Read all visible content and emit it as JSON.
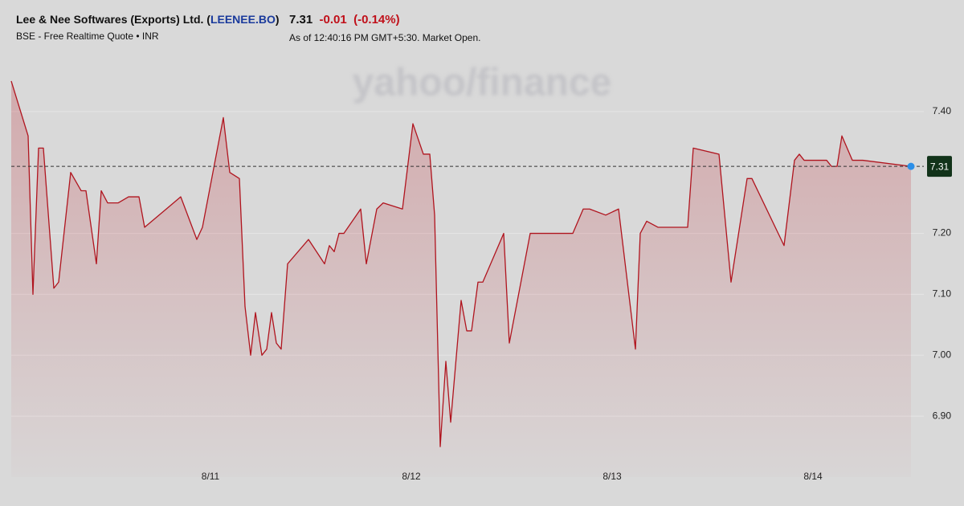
{
  "header": {
    "title": "Lee & Nee Softwares (Exports) Ltd. (",
    "symbol": "LEENEE.BO",
    "title_end": ")",
    "subtitle": "BSE - Free Realtime Quote • INR",
    "price": "7.31",
    "change": "-0.01",
    "change_percent": "(-0.14%)",
    "as_of": "As of 12:40:16 PM GMT+5:30. Market Open.",
    "watermark": "yahoo/finance"
  },
  "chart_data": {
    "type": "line",
    "x": [
      10.008,
      10.092,
      10.116,
      10.144,
      10.168,
      10.22,
      10.244,
      10.304,
      10.356,
      10.38,
      10.432,
      10.456,
      10.488,
      10.54,
      10.592,
      10.644,
      10.672,
      10.852,
      10.932,
      10.96,
      11.064,
      11.096,
      11.144,
      11.172,
      11.2,
      11.224,
      11.256,
      11.28,
      11.304,
      11.328,
      11.352,
      11.384,
      11.488,
      11.568,
      11.592,
      11.616,
      11.64,
      11.664,
      11.748,
      11.776,
      11.828,
      11.86,
      11.956,
      12.008,
      12.06,
      12.092,
      12.116,
      12.144,
      12.172,
      12.196,
      12.248,
      12.276,
      12.3,
      12.332,
      12.356,
      12.46,
      12.488,
      12.592,
      12.804,
      12.856,
      12.888,
      12.968,
      13.032,
      13.116,
      13.14,
      13.172,
      13.228,
      13.376,
      13.404,
      13.532,
      13.592,
      13.672,
      13.696,
      13.856,
      13.908,
      13.932,
      13.956,
      14.068,
      14.092,
      14.12,
      14.144,
      14.196,
      14.248,
      14.488
    ],
    "series": [
      {
        "name": "LEENEE.BO",
        "color": "#b0141e",
        "values": [
          7.45,
          7.36,
          7.1,
          7.34,
          7.34,
          7.11,
          7.12,
          7.3,
          7.27,
          7.27,
          7.15,
          7.27,
          7.25,
          7.25,
          7.26,
          7.26,
          7.21,
          7.26,
          7.19,
          7.21,
          7.39,
          7.3,
          7.29,
          7.08,
          7.0,
          7.07,
          7.0,
          7.01,
          7.07,
          7.02,
          7.01,
          7.15,
          7.19,
          7.15,
          7.18,
          7.17,
          7.2,
          7.2,
          7.24,
          7.15,
          7.24,
          7.25,
          7.24,
          7.38,
          7.33,
          7.33,
          7.23,
          6.85,
          6.99,
          6.89,
          7.09,
          7.04,
          7.04,
          7.12,
          7.12,
          7.2,
          7.02,
          7.2,
          7.2,
          7.24,
          7.24,
          7.23,
          7.24,
          7.01,
          7.2,
          7.22,
          7.21,
          7.21,
          7.34,
          7.33,
          7.12,
          7.29,
          7.29,
          7.18,
          7.32,
          7.33,
          7.32,
          7.32,
          7.31,
          7.31,
          7.36,
          7.32,
          7.32,
          7.31
        ]
      }
    ],
    "current_price": 7.31,
    "xlim": [
      10.008,
      14.488
    ],
    "xticks": [
      {
        "value": 11,
        "label": "8/11"
      },
      {
        "value": 12,
        "label": "8/12"
      },
      {
        "value": 13,
        "label": "8/13"
      },
      {
        "value": 14,
        "label": "8/14"
      }
    ],
    "ylim": [
      6.8,
      7.5
    ],
    "yticks": [
      {
        "value": 7.4,
        "label": "7.40"
      },
      {
        "value": 7.2,
        "label": "7.20"
      },
      {
        "value": 7.1,
        "label": "7.10"
      },
      {
        "value": 7.0,
        "label": "7.00"
      },
      {
        "value": 6.9,
        "label": "6.90"
      }
    ],
    "grid": true
  }
}
